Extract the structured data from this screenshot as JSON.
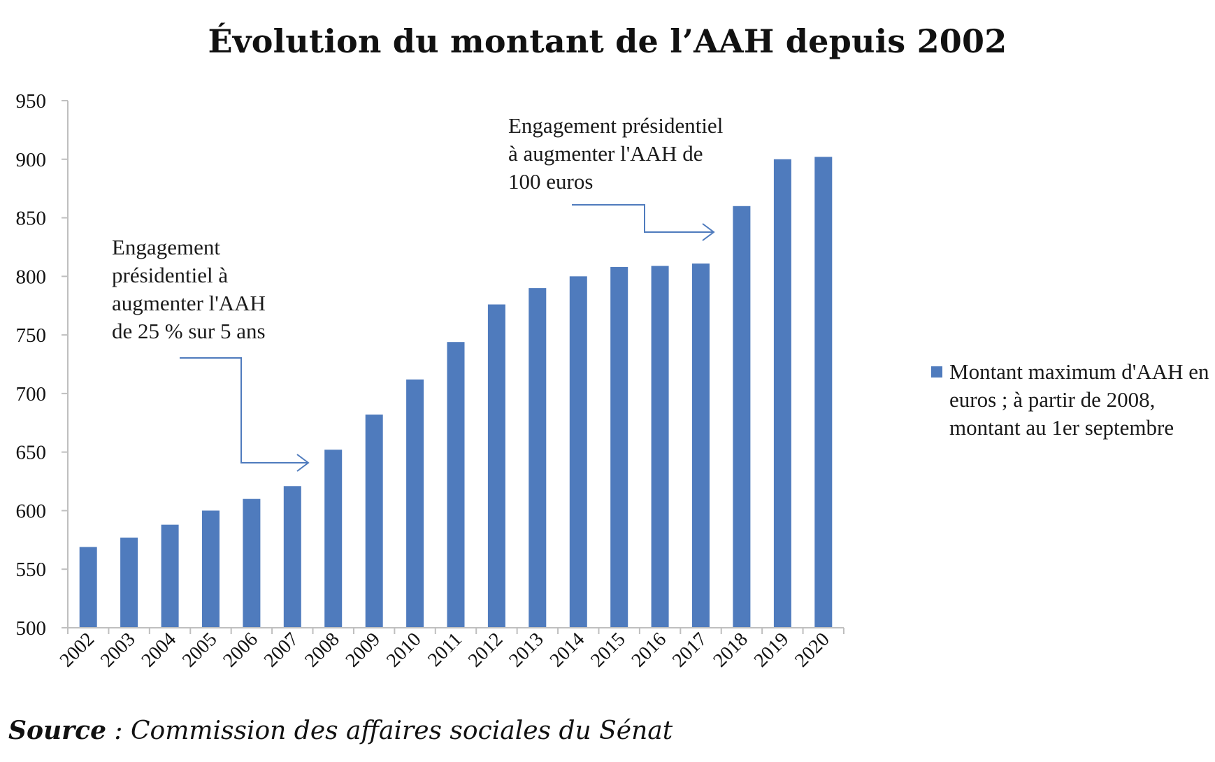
{
  "chart_data": {
    "type": "bar",
    "title": "Évolution du montant de l’AAH depuis 2002",
    "categories": [
      "2002",
      "2003",
      "2004",
      "2005",
      "2006",
      "2007",
      "2008",
      "2009",
      "2010",
      "2011",
      "2012",
      "2013",
      "2014",
      "2015",
      "2016",
      "2017",
      "2018",
      "2019",
      "2020"
    ],
    "series": [
      {
        "name": "Montant maximum d'AAH en euros ; à partir de 2008, montant au 1er septembre",
        "values": [
          569,
          577,
          588,
          600,
          610,
          621,
          652,
          682,
          712,
          744,
          776,
          790,
          800,
          808,
          809,
          811,
          860,
          900,
          902
        ]
      }
    ],
    "xlabel": "",
    "ylabel": "",
    "ylim": [
      500,
      950
    ],
    "yticks": [
      500,
      550,
      600,
      650,
      700,
      750,
      800,
      850,
      900,
      950
    ],
    "grid": false,
    "legend_position": "right",
    "bar_color": "#4f7bbd",
    "arrow_color": "#4f7bbd",
    "axis_color": "#bfbfbf",
    "annotations": [
      {
        "text_lines": [
          "Engagement",
          "présidentiel à",
          "augmenter l'AAH",
          "de 25 % sur 5 ans"
        ],
        "target": "2008"
      },
      {
        "text_lines": [
          "Engagement présidentiel",
          "à augmenter l'AAH de",
          "100 euros"
        ],
        "target": "2018"
      }
    ]
  },
  "source": {
    "label": "Source",
    "text": " : Commission des affaires sociales du Sénat"
  }
}
